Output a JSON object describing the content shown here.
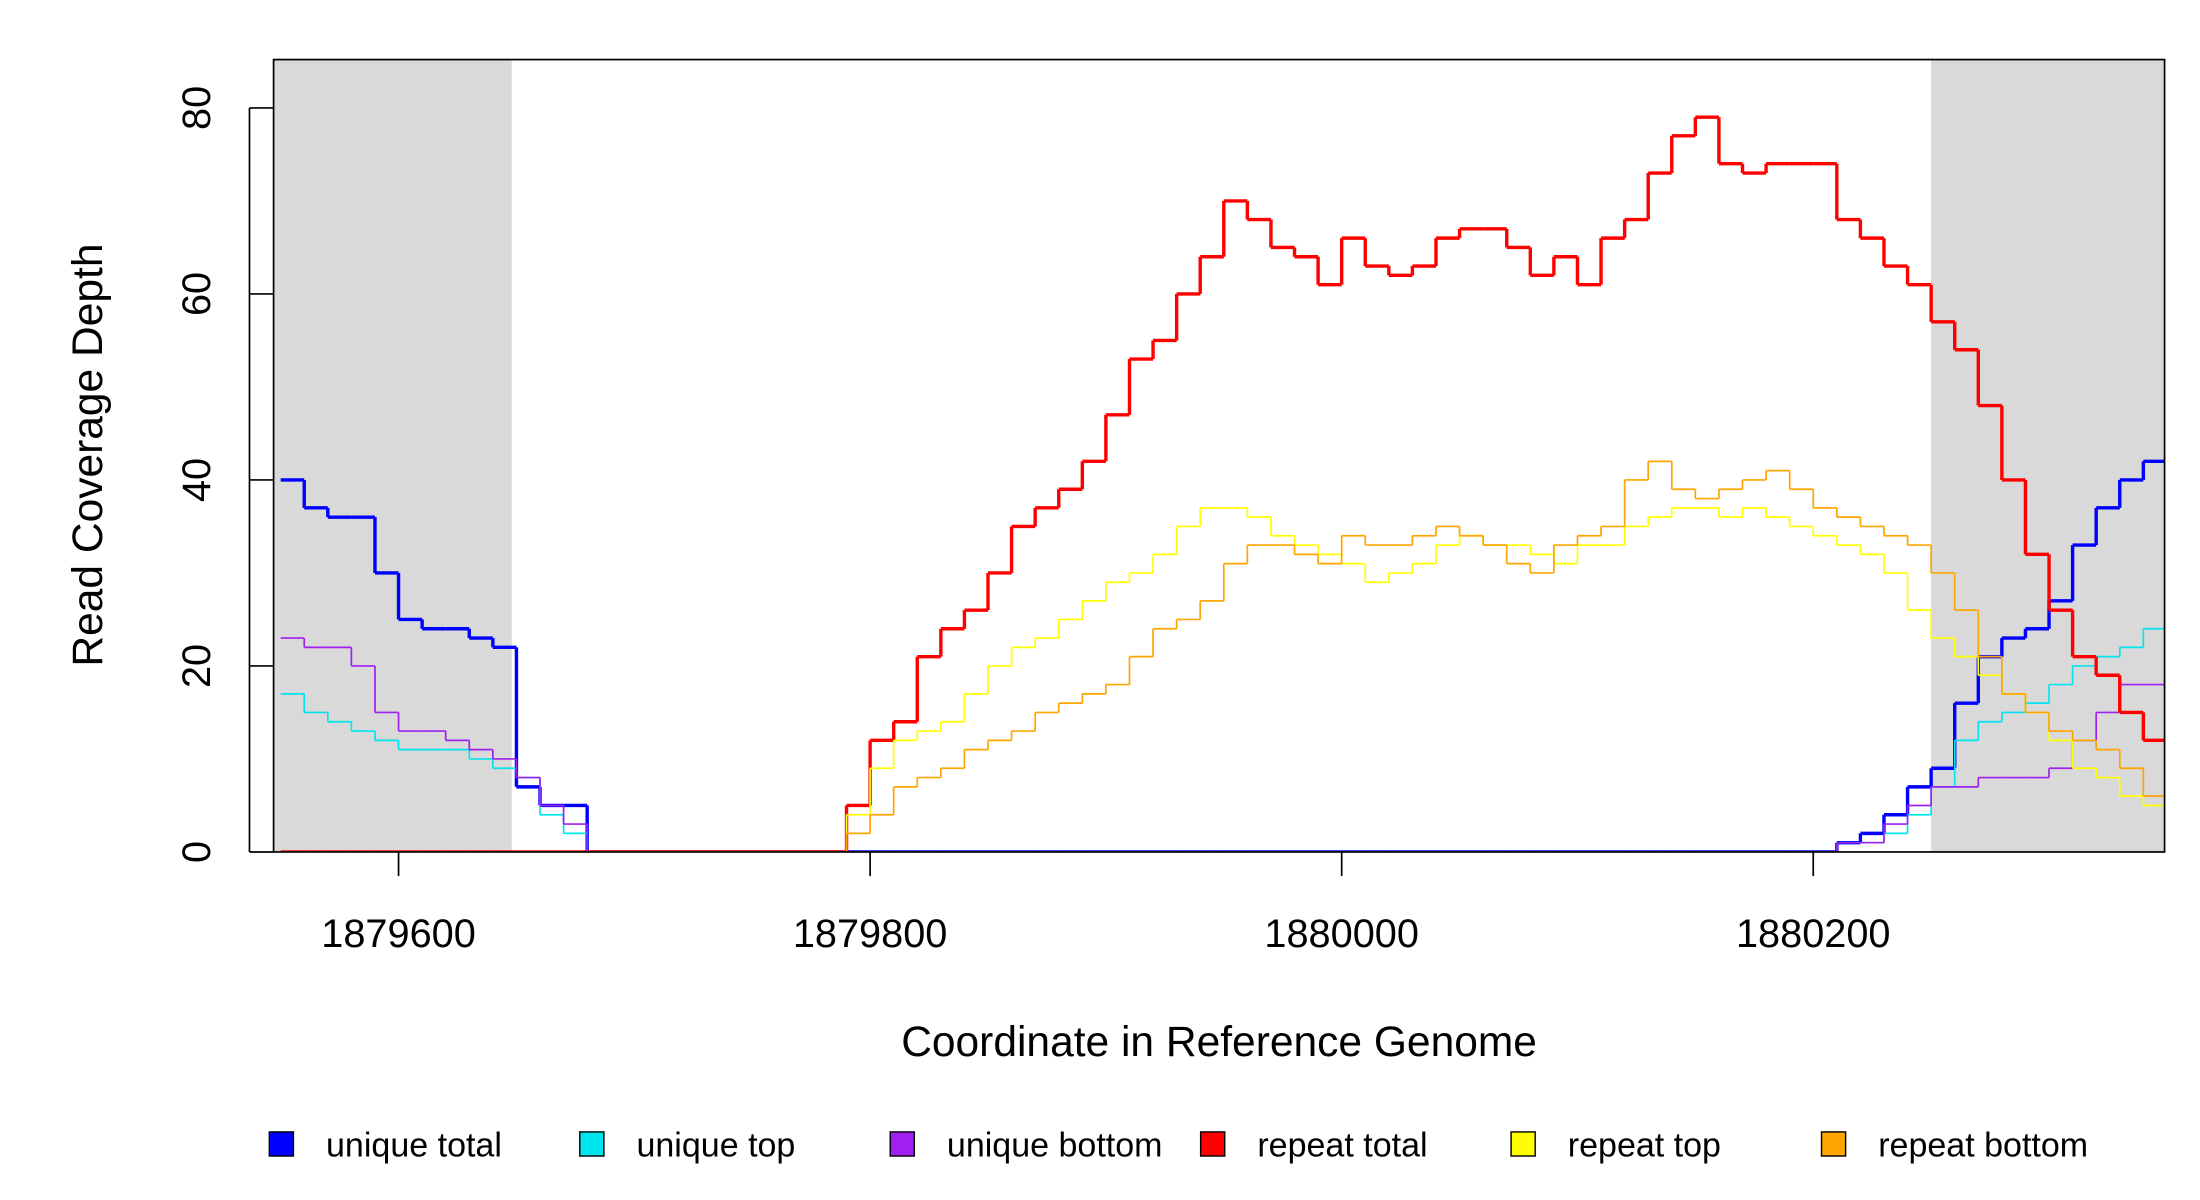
{
  "chart_data": {
    "type": "step",
    "x_label": "Coordinate in Reference Genome",
    "y_label": "Read Coverage Depth",
    "x": [
      1879550,
      1879560,
      1879570,
      1879580,
      1879590,
      1879600,
      1879610,
      1879620,
      1879630,
      1879640,
      1879650,
      1879660,
      1879670,
      1879680,
      1879690,
      1879700,
      1879710,
      1879720,
      1879730,
      1879740,
      1879750,
      1879760,
      1879770,
      1879780,
      1879790,
      1879800,
      1879810,
      1879820,
      1879830,
      1879840,
      1879850,
      1879860,
      1879870,
      1879880,
      1879890,
      1879900,
      1879910,
      1879920,
      1879930,
      1879940,
      1879950,
      1879960,
      1879970,
      1879980,
      1879990,
      1880000,
      1880010,
      1880020,
      1880030,
      1880040,
      1880050,
      1880060,
      1880070,
      1880080,
      1880090,
      1880100,
      1880110,
      1880120,
      1880130,
      1880140,
      1880150,
      1880160,
      1880170,
      1880180,
      1880190,
      1880200,
      1880210,
      1880220,
      1880230,
      1880240,
      1880250,
      1880260,
      1880270,
      1880280,
      1880290,
      1880300,
      1880310,
      1880320,
      1880330,
      1880340
    ],
    "series": [
      {
        "name": "unique total",
        "color": "#0000ff",
        "line_width": 2.4,
        "values": [
          40,
          37,
          36,
          36,
          30,
          25,
          24,
          24,
          23,
          22,
          7,
          5,
          5,
          0,
          0,
          0,
          0,
          0,
          0,
          0,
          0,
          0,
          0,
          0,
          0,
          0,
          0,
          0,
          0,
          0,
          0,
          0,
          0,
          0,
          0,
          0,
          0,
          0,
          0,
          0,
          0,
          0,
          0,
          0,
          0,
          0,
          0,
          0,
          0,
          0,
          0,
          0,
          0,
          0,
          0,
          0,
          0,
          0,
          0,
          0,
          0,
          0,
          0,
          0,
          0,
          0,
          1,
          2,
          4,
          7,
          9,
          16,
          21,
          23,
          24,
          27,
          33,
          37,
          40,
          42
        ]
      },
      {
        "name": "unique top",
        "color": "#00e5ee",
        "line_width": 1.2,
        "values": [
          17,
          15,
          14,
          13,
          12,
          11,
          11,
          11,
          10,
          9,
          8,
          4,
          2,
          0,
          0,
          0,
          0,
          0,
          0,
          0,
          0,
          0,
          0,
          0,
          0,
          0,
          0,
          0,
          0,
          0,
          0,
          0,
          0,
          0,
          0,
          0,
          0,
          0,
          0,
          0,
          0,
          0,
          0,
          0,
          0,
          0,
          0,
          0,
          0,
          0,
          0,
          0,
          0,
          0,
          0,
          0,
          0,
          0,
          0,
          0,
          0,
          0,
          0,
          0,
          0,
          0,
          1,
          1,
          2,
          4,
          7,
          12,
          14,
          15,
          16,
          18,
          20,
          21,
          22,
          24
        ]
      },
      {
        "name": "unique bottom",
        "color": "#a020f0",
        "line_width": 1.2,
        "values": [
          23,
          22,
          22,
          20,
          15,
          13,
          13,
          12,
          11,
          10,
          8,
          5,
          3,
          0,
          0,
          0,
          0,
          0,
          0,
          0,
          0,
          0,
          0,
          0,
          0,
          0,
          0,
          0,
          0,
          0,
          0,
          0,
          0,
          0,
          0,
          0,
          0,
          0,
          0,
          0,
          0,
          0,
          0,
          0,
          0,
          0,
          0,
          0,
          0,
          0,
          0,
          0,
          0,
          0,
          0,
          0,
          0,
          0,
          0,
          0,
          0,
          0,
          0,
          0,
          0,
          0,
          1,
          1,
          3,
          5,
          7,
          7,
          8,
          8,
          8,
          9,
          12,
          15,
          18,
          18
        ]
      },
      {
        "name": "repeat total",
        "color": "#ff0000",
        "line_width": 2.4,
        "values": [
          0,
          0,
          0,
          0,
          0,
          0,
          0,
          0,
          0,
          0,
          0,
          0,
          0,
          0,
          0,
          0,
          0,
          0,
          0,
          0,
          0,
          0,
          0,
          0,
          5,
          12,
          14,
          21,
          24,
          26,
          30,
          35,
          37,
          39,
          42,
          47,
          53,
          55,
          60,
          64,
          70,
          68,
          65,
          64,
          61,
          66,
          63,
          62,
          63,
          66,
          67,
          67,
          65,
          62,
          64,
          61,
          66,
          68,
          73,
          77,
          79,
          74,
          73,
          74,
          74,
          74,
          68,
          66,
          63,
          61,
          57,
          54,
          48,
          40,
          32,
          26,
          21,
          19,
          15,
          12
        ]
      },
      {
        "name": "repeat top",
        "color": "#ffff00",
        "line_width": 1.2,
        "values": [
          0,
          0,
          0,
          0,
          0,
          0,
          0,
          0,
          0,
          0,
          0,
          0,
          0,
          0,
          0,
          0,
          0,
          0,
          0,
          0,
          0,
          0,
          0,
          0,
          4,
          9,
          12,
          13,
          14,
          17,
          20,
          22,
          23,
          25,
          27,
          29,
          30,
          32,
          35,
          37,
          37,
          36,
          34,
          33,
          32,
          31,
          29,
          30,
          31,
          33,
          34,
          33,
          33,
          32,
          31,
          33,
          33,
          35,
          36,
          37,
          37,
          36,
          37,
          36,
          35,
          34,
          33,
          32,
          30,
          26,
          23,
          21,
          19,
          17,
          15,
          12,
          9,
          8,
          6,
          5
        ]
      },
      {
        "name": "repeat bottom",
        "color": "#ffa500",
        "line_width": 1.2,
        "values": [
          0,
          0,
          0,
          0,
          0,
          0,
          0,
          0,
          0,
          0,
          0,
          0,
          0,
          0,
          0,
          0,
          0,
          0,
          0,
          0,
          0,
          0,
          0,
          0,
          2,
          4,
          7,
          8,
          9,
          11,
          12,
          13,
          15,
          16,
          17,
          18,
          21,
          24,
          25,
          27,
          31,
          33,
          33,
          32,
          31,
          34,
          33,
          33,
          34,
          35,
          34,
          33,
          31,
          30,
          33,
          34,
          35,
          40,
          42,
          39,
          38,
          39,
          40,
          41,
          39,
          37,
          36,
          35,
          34,
          33,
          30,
          26,
          21,
          17,
          15,
          13,
          12,
          11,
          9,
          6
        ]
      }
    ],
    "xlim": [
      1879547,
      1880349
    ],
    "ylim": [
      0,
      85.2
    ],
    "xticks": [
      1879600,
      1879800,
      1880000,
      1880200
    ],
    "yticks": [
      0,
      20,
      40,
      60,
      80
    ],
    "shaded_regions": [
      [
        1879547,
        1879648
      ],
      [
        1880250,
        1880349
      ]
    ],
    "shade_color": "#d9d9d9",
    "legend": "bottom"
  }
}
